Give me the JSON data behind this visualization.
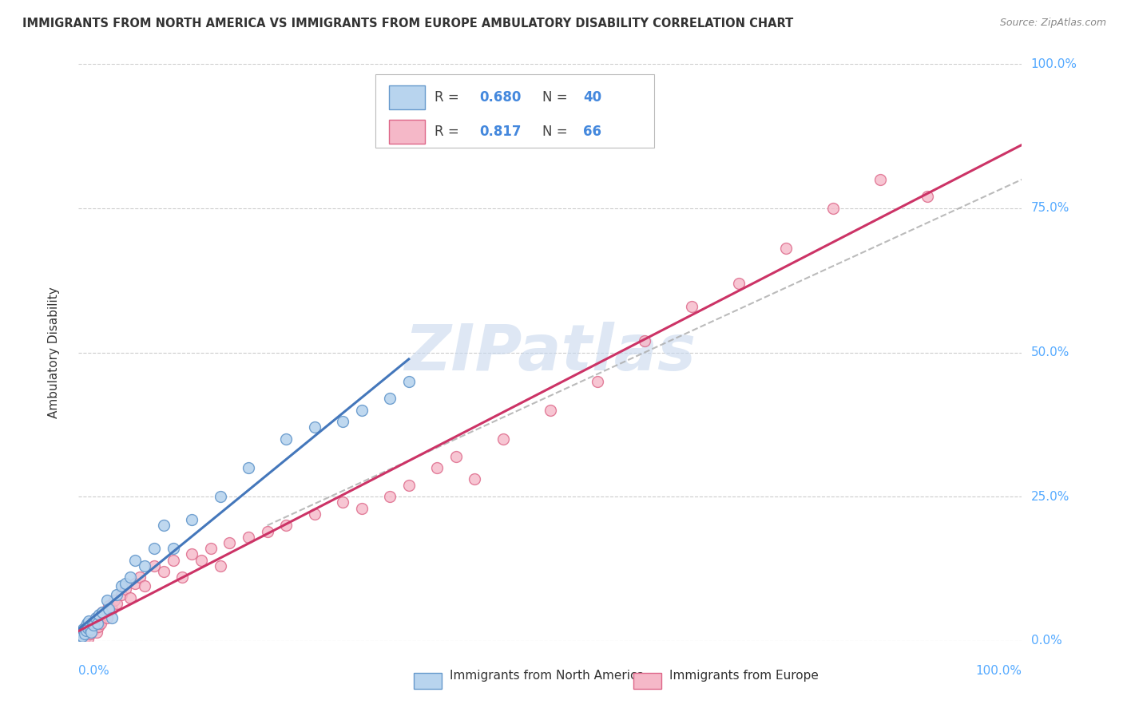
{
  "title": "IMMIGRANTS FROM NORTH AMERICA VS IMMIGRANTS FROM EUROPE AMBULATORY DISABILITY CORRELATION CHART",
  "source_text": "Source: ZipAtlas.com",
  "ylabel": "Ambulatory Disability",
  "xlim": [
    0,
    100
  ],
  "ylim": [
    0,
    100
  ],
  "ytick_values": [
    0,
    25,
    50,
    75,
    100
  ],
  "ytick_labels": [
    "0.0%",
    "25.0%",
    "50.0%",
    "75.0%",
    "100.0%"
  ],
  "xtick_labels_left": "0.0%",
  "xtick_labels_right": "100.0%",
  "series_blue": {
    "label": "Immigrants from North America",
    "R": 0.68,
    "N": 40,
    "color": "#b8d4ee",
    "edge_color": "#6699cc",
    "line_color": "#4477bb",
    "x": [
      0.1,
      0.2,
      0.3,
      0.4,
      0.5,
      0.6,
      0.7,
      0.8,
      0.9,
      1.0,
      1.1,
      1.2,
      1.3,
      1.5,
      1.6,
      1.8,
      2.0,
      2.2,
      2.5,
      3.0,
      3.2,
      3.5,
      4.0,
      4.5,
      5.0,
      5.5,
      6.0,
      7.0,
      8.0,
      9.0,
      10.0,
      12.0,
      15.0,
      18.0,
      22.0,
      25.0,
      28.0,
      30.0,
      33.0,
      35.0
    ],
    "y": [
      0.5,
      1.0,
      1.5,
      0.8,
      2.0,
      1.2,
      2.5,
      1.8,
      3.0,
      2.2,
      3.5,
      2.0,
      1.5,
      3.2,
      2.8,
      4.0,
      3.0,
      4.5,
      5.0,
      7.0,
      5.5,
      4.0,
      8.0,
      9.5,
      10.0,
      11.0,
      14.0,
      13.0,
      16.0,
      20.0,
      16.0,
      21.0,
      25.0,
      30.0,
      35.0,
      37.0,
      38.0,
      40.0,
      42.0,
      45.0
    ],
    "line_x": [
      0,
      35
    ],
    "line_y": [
      2,
      46
    ]
  },
  "series_pink": {
    "label": "Immigrants from Europe",
    "R": 0.817,
    "N": 66,
    "color": "#f5b8c8",
    "edge_color": "#dd6688",
    "line_color": "#cc3366",
    "x": [
      0.1,
      0.2,
      0.3,
      0.4,
      0.5,
      0.6,
      0.7,
      0.8,
      0.9,
      1.0,
      1.1,
      1.2,
      1.3,
      1.4,
      1.5,
      1.6,
      1.7,
      1.8,
      1.9,
      2.0,
      2.1,
      2.2,
      2.3,
      2.5,
      2.7,
      3.0,
      3.2,
      3.5,
      3.8,
      4.0,
      4.5,
      5.0,
      5.5,
      6.0,
      6.5,
      7.0,
      8.0,
      9.0,
      10.0,
      11.0,
      12.0,
      13.0,
      14.0,
      15.0,
      16.0,
      18.0,
      20.0,
      22.0,
      25.0,
      28.0,
      30.0,
      33.0,
      35.0,
      38.0,
      40.0,
      42.0,
      45.0,
      50.0,
      55.0,
      60.0,
      65.0,
      70.0,
      75.0,
      80.0,
      85.0,
      90.0
    ],
    "y": [
      0.3,
      0.5,
      0.8,
      1.2,
      1.0,
      1.5,
      0.6,
      2.0,
      1.8,
      0.4,
      2.5,
      1.2,
      3.0,
      2.2,
      1.8,
      3.5,
      2.0,
      3.8,
      1.5,
      4.0,
      2.5,
      3.2,
      3.0,
      5.0,
      4.5,
      4.0,
      6.0,
      5.5,
      7.0,
      6.5,
      8.0,
      9.0,
      7.5,
      10.0,
      11.0,
      9.5,
      13.0,
      12.0,
      14.0,
      11.0,
      15.0,
      14.0,
      16.0,
      13.0,
      17.0,
      18.0,
      19.0,
      20.0,
      22.0,
      24.0,
      23.0,
      25.0,
      27.0,
      30.0,
      32.0,
      28.0,
      35.0,
      40.0,
      45.0,
      52.0,
      58.0,
      62.0,
      68.0,
      75.0,
      80.0,
      77.0
    ],
    "line_x": [
      0,
      100
    ],
    "line_y": [
      0,
      87
    ]
  },
  "dashed_line": {
    "color": "#aaaaaa",
    "x": [
      20,
      100
    ],
    "y": [
      20,
      80
    ]
  },
  "watermark_text": "ZIPatlas",
  "watermark_color": "#c8d8ee",
  "background_color": "#ffffff",
  "grid_color": "#cccccc",
  "title_color": "#333333",
  "source_color": "#888888",
  "label_color": "#333333",
  "tick_color": "#55aaff"
}
